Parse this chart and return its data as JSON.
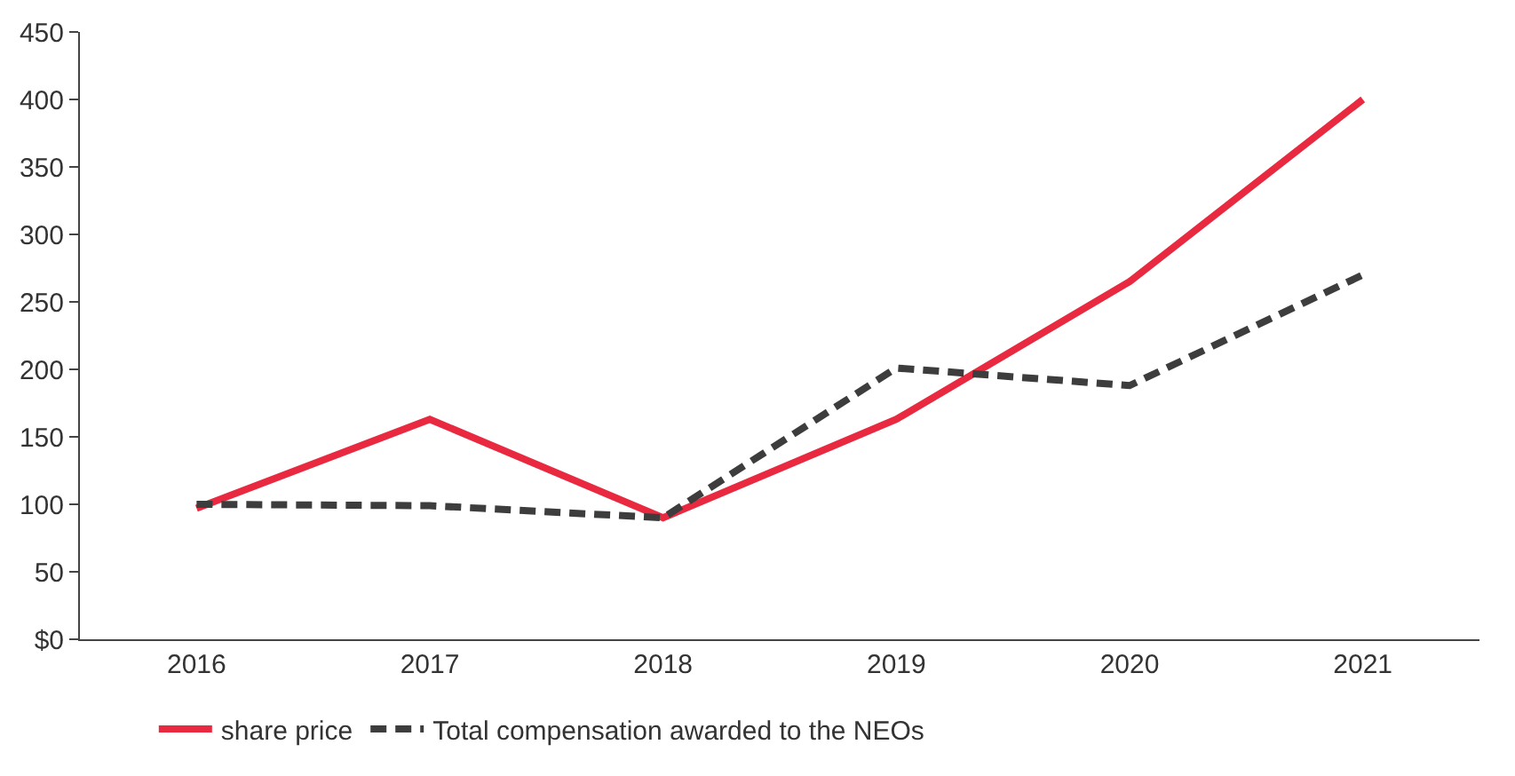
{
  "chart_data": {
    "type": "line",
    "categories": [
      "2016",
      "2017",
      "2018",
      "2019",
      "2020",
      "2021"
    ],
    "series": [
      {
        "name": "share price",
        "color": "#e8293f",
        "values": [
          97,
          163,
          90,
          163,
          265,
          400
        ],
        "line_style": "solid"
      },
      {
        "name": "Total compensation awarded to the NEOs",
        "color": "#3d3d3d",
        "values": [
          100,
          99,
          90,
          201,
          188,
          270
        ],
        "line_style": "dashed"
      }
    ],
    "ylim": [
      0,
      450
    ],
    "yticks": [
      {
        "value": 0,
        "label": "$0"
      },
      50,
      100,
      150,
      200,
      250,
      300,
      350,
      400,
      450
    ],
    "legend": "bottom",
    "marker": "none"
  }
}
